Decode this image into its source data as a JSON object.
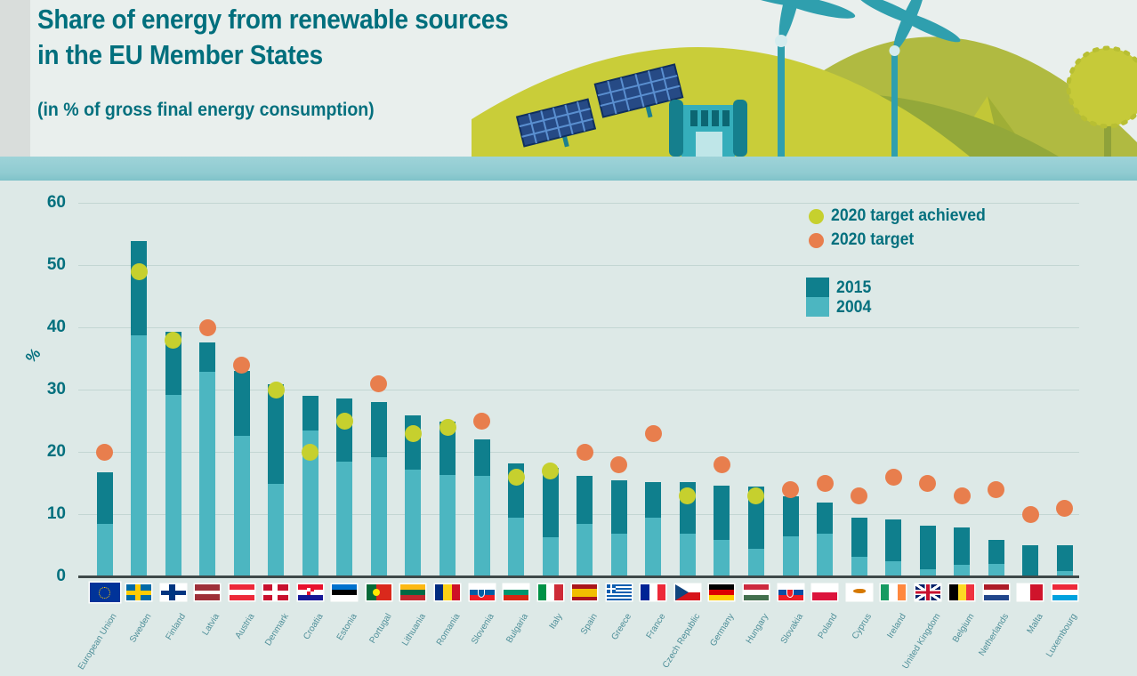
{
  "header": {
    "title_line1": "Share of energy from renewable sources",
    "title_line2": "in the EU Member States",
    "subtitle": "(in % of gross final energy consumption)"
  },
  "legend": {
    "achieved_label": "2020 target achieved",
    "target_label": "2020 target",
    "series_2015_label": "2015",
    "series_2004_label": "2004"
  },
  "axis": {
    "unit": "%",
    "ticks": [
      60,
      50,
      40,
      30,
      20,
      10,
      0
    ]
  },
  "colors": {
    "title_text": "#04707e",
    "bar_2015": "#0f7f8d",
    "bar_2004": "#4cb6c1",
    "dot_achieved": "#c6d02e",
    "dot_target": "#e87e4d",
    "gridline": "#c3d6d3",
    "axis_line": "#3e4949",
    "water_band": "#8fcbd1",
    "chart_bg": "#dde9e7",
    "hill_light": "#c9cd39",
    "hill_dark": "#93a83a",
    "hill_mid": "#b0ba41",
    "structure_teal": "#2fa7b5"
  },
  "chart_data": {
    "type": "bar",
    "title": "Share of energy from renewable sources in the EU Member States",
    "ylabel": "%",
    "ylim": [
      0,
      60
    ],
    "grid": true,
    "legend_position": "top-right",
    "series": [
      {
        "name": "2015",
        "color": "#0f7f8d"
      },
      {
        "name": "2004",
        "color": "#4cb6c1"
      }
    ],
    "markers": [
      {
        "name": "2020 target achieved",
        "color": "#c6d02e"
      },
      {
        "name": "2020 target",
        "color": "#e87e4d"
      }
    ],
    "countries": [
      {
        "name": "European Union",
        "v2004": 8.5,
        "v2015": 16.7,
        "target": 20,
        "achieved": false,
        "flag": {
          "p": "eu",
          "c": [
            "#003399",
            "#ffcc00"
          ]
        }
      },
      {
        "name": "Sweden",
        "v2004": 38.7,
        "v2015": 53.9,
        "target": 49,
        "achieved": true,
        "flag": {
          "p": "cross",
          "c": [
            "#006aa7",
            "#fecc02"
          ]
        }
      },
      {
        "name": "Finland",
        "v2004": 29.2,
        "v2015": 39.3,
        "target": 38,
        "achieved": true,
        "flag": {
          "p": "cross",
          "c": [
            "#ffffff",
            "#003580"
          ]
        }
      },
      {
        "name": "Latvia",
        "v2004": 32.8,
        "v2015": 37.6,
        "target": 40,
        "achieved": false,
        "flag": {
          "p": "h",
          "c": [
            "#9e3039",
            "#ffffff",
            "#9e3039"
          ],
          "w": [
            2,
            1,
            2
          ]
        }
      },
      {
        "name": "Austria",
        "v2004": 22.6,
        "v2015": 33.0,
        "target": 34,
        "achieved": false,
        "flag": {
          "p": "h",
          "c": [
            "#ed2939",
            "#ffffff",
            "#ed2939"
          ]
        }
      },
      {
        "name": "Denmark",
        "v2004": 14.9,
        "v2015": 30.8,
        "target": 30,
        "achieved": true,
        "flag": {
          "p": "cross",
          "c": [
            "#c8102e",
            "#ffffff"
          ]
        }
      },
      {
        "name": "Croatia",
        "v2004": 23.5,
        "v2015": 29.0,
        "target": 20,
        "achieved": true,
        "flag": {
          "p": "h",
          "c": [
            "#e8112d",
            "#ffffff",
            "#171796"
          ],
          "b": {
            "t": "checker",
            "c": "#e8112d"
          }
        }
      },
      {
        "name": "Estonia",
        "v2004": 18.4,
        "v2015": 28.6,
        "target": 25,
        "achieved": true,
        "flag": {
          "p": "h",
          "c": [
            "#0072ce",
            "#000000",
            "#ffffff"
          ]
        }
      },
      {
        "name": "Portugal",
        "v2004": 19.2,
        "v2015": 28.0,
        "target": 31,
        "achieved": false,
        "flag": {
          "p": "v",
          "c": [
            "#046a38",
            "#da291c"
          ],
          "w": [
            2,
            3
          ],
          "b": {
            "t": "circle",
            "c": "#ffe900",
            "x": 0.4
          }
        }
      },
      {
        "name": "Lithuania",
        "v2004": 17.2,
        "v2015": 25.8,
        "target": 23,
        "achieved": true,
        "flag": {
          "p": "h",
          "c": [
            "#fdb913",
            "#006a44",
            "#c1272d"
          ]
        }
      },
      {
        "name": "Romania",
        "v2004": 16.3,
        "v2015": 24.8,
        "target": 24,
        "achieved": true,
        "flag": {
          "p": "v",
          "c": [
            "#002b7f",
            "#fcd116",
            "#ce1126"
          ]
        }
      },
      {
        "name": "Slovenia",
        "v2004": 16.1,
        "v2015": 22.0,
        "target": 25,
        "achieved": false,
        "flag": {
          "p": "h",
          "c": [
            "#ffffff",
            "#005da4",
            "#ed1c24"
          ],
          "b": {
            "t": "shield",
            "c": "#005da4",
            "x": 0.35
          }
        }
      },
      {
        "name": "Bulgaria",
        "v2004": 9.4,
        "v2015": 18.2,
        "target": 16,
        "achieved": true,
        "flag": {
          "p": "h",
          "c": [
            "#ffffff",
            "#00966e",
            "#d62612"
          ]
        }
      },
      {
        "name": "Italy",
        "v2004": 6.3,
        "v2015": 17.5,
        "target": 17,
        "achieved": true,
        "flag": {
          "p": "v",
          "c": [
            "#009246",
            "#ffffff",
            "#ce2b37"
          ]
        }
      },
      {
        "name": "Spain",
        "v2004": 8.4,
        "v2015": 16.2,
        "target": 20,
        "achieved": false,
        "flag": {
          "p": "h",
          "c": [
            "#aa151b",
            "#f1bf00",
            "#aa151b"
          ],
          "w": [
            1,
            2,
            1
          ]
        }
      },
      {
        "name": "Greece",
        "v2004": 6.9,
        "v2015": 15.4,
        "target": 18,
        "achieved": false,
        "flag": {
          "p": "greece",
          "c": [
            "#0d5eaf",
            "#ffffff"
          ]
        }
      },
      {
        "name": "France",
        "v2004": 9.5,
        "v2015": 15.2,
        "target": 23,
        "achieved": false,
        "flag": {
          "p": "v",
          "c": [
            "#002395",
            "#ffffff",
            "#ed2939"
          ]
        }
      },
      {
        "name": "Czech Republic",
        "v2004": 6.8,
        "v2015": 15.1,
        "target": 13,
        "achieved": true,
        "flag": {
          "p": "czech",
          "c": [
            "#ffffff",
            "#d7141a",
            "#11457e"
          ]
        }
      },
      {
        "name": "Germany",
        "v2004": 5.8,
        "v2015": 14.6,
        "target": 18,
        "achieved": false,
        "flag": {
          "p": "h",
          "c": [
            "#000000",
            "#dd0000",
            "#ffce00"
          ]
        }
      },
      {
        "name": "Hungary",
        "v2004": 4.4,
        "v2015": 14.5,
        "target": 13,
        "achieved": true,
        "flag": {
          "p": "h",
          "c": [
            "#cd2a3e",
            "#ffffff",
            "#436f4d"
          ]
        }
      },
      {
        "name": "Slovakia",
        "v2004": 6.4,
        "v2015": 12.9,
        "target": 14,
        "achieved": false,
        "flag": {
          "p": "h",
          "c": [
            "#ffffff",
            "#0b4ea2",
            "#ee1c25"
          ],
          "b": {
            "t": "shield",
            "c": "#ee1c25",
            "x": 0.35
          }
        }
      },
      {
        "name": "Poland",
        "v2004": 6.9,
        "v2015": 11.8,
        "target": 15,
        "achieved": false,
        "flag": {
          "p": "h",
          "c": [
            "#ffffff",
            "#dc143c"
          ],
          "w": [
            1,
            1
          ]
        }
      },
      {
        "name": "Cyprus",
        "v2004": 3.1,
        "v2015": 9.4,
        "target": 13,
        "achieved": false,
        "flag": {
          "p": "cyprus",
          "c": [
            "#ffffff",
            "#d57800"
          ]
        }
      },
      {
        "name": "Ireland",
        "v2004": 2.4,
        "v2015": 9.2,
        "target": 16,
        "achieved": false,
        "flag": {
          "p": "v",
          "c": [
            "#169b62",
            "#ffffff",
            "#ff883e"
          ]
        }
      },
      {
        "name": "United Kingdom",
        "v2004": 1.1,
        "v2015": 8.2,
        "target": 15,
        "achieved": false,
        "flag": {
          "p": "uk",
          "c": [
            "#012169",
            "#ffffff",
            "#c8102e"
          ]
        }
      },
      {
        "name": "Belgium",
        "v2004": 1.9,
        "v2015": 7.9,
        "target": 13,
        "achieved": false,
        "flag": {
          "p": "v",
          "c": [
            "#000000",
            "#fdda24",
            "#ef3340"
          ]
        }
      },
      {
        "name": "Netherlands",
        "v2004": 2.0,
        "v2015": 5.8,
        "target": 14,
        "achieved": false,
        "flag": {
          "p": "h",
          "c": [
            "#ae1c28",
            "#ffffff",
            "#21468b"
          ]
        }
      },
      {
        "name": "Malta",
        "v2004": 0.1,
        "v2015": 5.0,
        "target": 10,
        "achieved": false,
        "flag": {
          "p": "v",
          "c": [
            "#ffffff",
            "#cf142b"
          ],
          "w": [
            1,
            1
          ]
        }
      },
      {
        "name": "Luxembourg",
        "v2004": 0.9,
        "v2015": 5.0,
        "target": 11,
        "achieved": false,
        "flag": {
          "p": "h",
          "c": [
            "#ed2939",
            "#ffffff",
            "#00a1de"
          ]
        }
      }
    ]
  }
}
